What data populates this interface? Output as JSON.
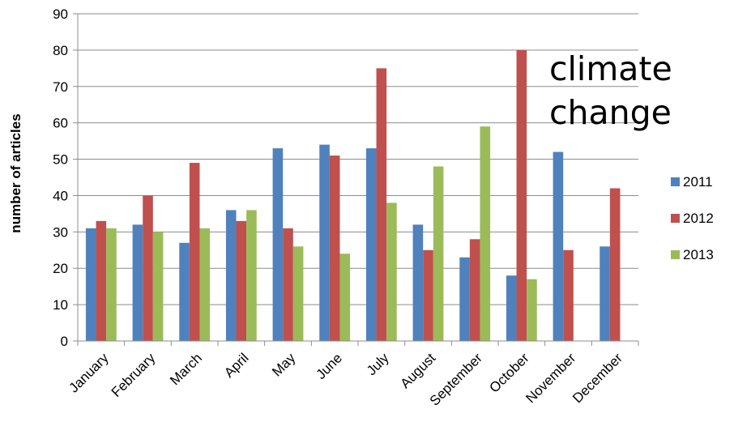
{
  "chart_data": {
    "type": "bar",
    "title": "",
    "xlabel": "",
    "ylabel": "number of articles",
    "ylim": [
      0,
      90
    ],
    "yticks": [
      0,
      10,
      20,
      30,
      40,
      50,
      60,
      70,
      80,
      90
    ],
    "grid": true,
    "legend_position": "right",
    "annotation": [
      "climate",
      "change"
    ],
    "categories": [
      "January",
      "February",
      "March",
      "April",
      "May",
      "June",
      "July",
      "August",
      "September",
      "October",
      "November",
      "December"
    ],
    "series": [
      {
        "name": "2011",
        "color": "#4F81BD",
        "values": [
          31,
          32,
          27,
          36,
          53,
          54,
          53,
          32,
          23,
          18,
          52,
          26
        ]
      },
      {
        "name": "2012",
        "color": "#C0504D",
        "values": [
          33,
          40,
          49,
          33,
          31,
          51,
          75,
          25,
          28,
          80,
          25,
          42
        ]
      },
      {
        "name": "2013",
        "color": "#9BBB59",
        "values": [
          31,
          30,
          31,
          36,
          26,
          24,
          38,
          48,
          59,
          17,
          0,
          0
        ]
      }
    ]
  }
}
